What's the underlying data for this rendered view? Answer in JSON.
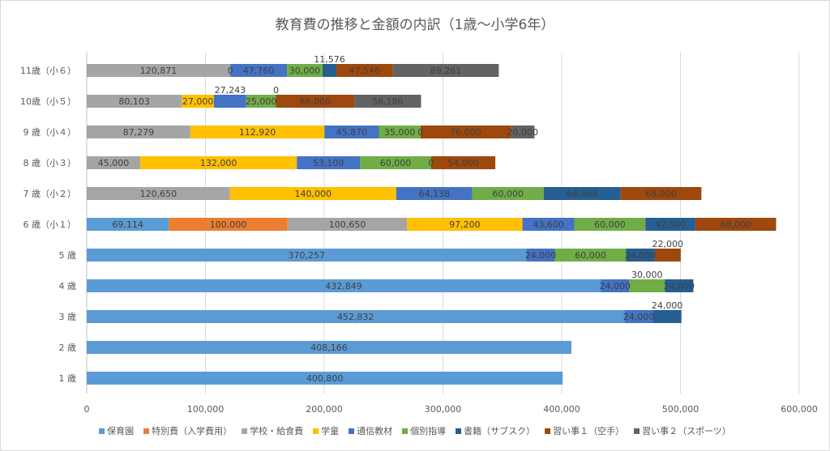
{
  "chart_data": {
    "type": "bar",
    "orientation": "horizontal",
    "stacked": true,
    "title": "教育費の推移と金額の内訳（1歳～小学6年）",
    "categories": [
      "11歳（小６）",
      "10歳（小５）",
      "9 歳（小４）",
      "8 歳（小３）",
      "7 歳（小２）",
      "6 歳（小１）",
      "5 歳",
      "4 歳",
      "3 歳",
      "2 歳",
      "1 歳"
    ],
    "xlim": [
      0,
      600000
    ],
    "xticks": [
      "0",
      "100,000",
      "200,000",
      "300,000",
      "400,000",
      "500,000",
      "600,000"
    ],
    "xtick_values": [
      0,
      100000,
      200000,
      300000,
      400000,
      500000,
      600000
    ],
    "grid": true,
    "legend_position": "bottom",
    "series": [
      {
        "name": "保育園",
        "color": "#5B9BD5",
        "values": [
          null,
          null,
          null,
          null,
          null,
          69114,
          370257,
          432849,
          452832,
          408166,
          400800
        ]
      },
      {
        "name": "特別費（入学費用）",
        "color": "#ED7D31",
        "values": [
          null,
          null,
          null,
          null,
          null,
          100000,
          null,
          null,
          null,
          null,
          null
        ]
      },
      {
        "name": "学校・給食費",
        "color": "#A5A5A5",
        "values": [
          120871,
          80103,
          87279,
          45000,
          120650,
          100650,
          null,
          null,
          null,
          null,
          null
        ]
      },
      {
        "name": "学童",
        "color": "#FFC000",
        "values": [
          0,
          27000,
          112920,
          132000,
          140000,
          97200,
          null,
          null,
          null,
          null,
          null
        ]
      },
      {
        "name": "通信教材",
        "color": "#4472C4",
        "values": [
          47760,
          27243,
          45870,
          53100,
          64138,
          43600,
          24000,
          24000,
          24000,
          null,
          null
        ]
      },
      {
        "name": "個別指導",
        "color": "#70AD47",
        "values": [
          30000,
          25000,
          35000,
          60000,
          60000,
          60000,
          60000,
          30000,
          null,
          null,
          null
        ]
      },
      {
        "name": "書籍（サブスク）",
        "color": "#255E91",
        "values": [
          11576,
          0,
          0,
          0,
          64868,
          42000,
          24000,
          24000,
          24000,
          null,
          null
        ]
      },
      {
        "name": "習い事１（空手）",
        "color": "#9E480E",
        "values": [
          47546,
          66000,
          76000,
          54000,
          68000,
          68000,
          22000,
          null,
          null,
          null,
          null
        ]
      },
      {
        "name": "習い事２（スポーツ）",
        "color": "#636363",
        "values": [
          89261,
          56186,
          20000,
          null,
          null,
          null,
          null,
          null,
          null,
          null,
          null
        ]
      }
    ]
  }
}
